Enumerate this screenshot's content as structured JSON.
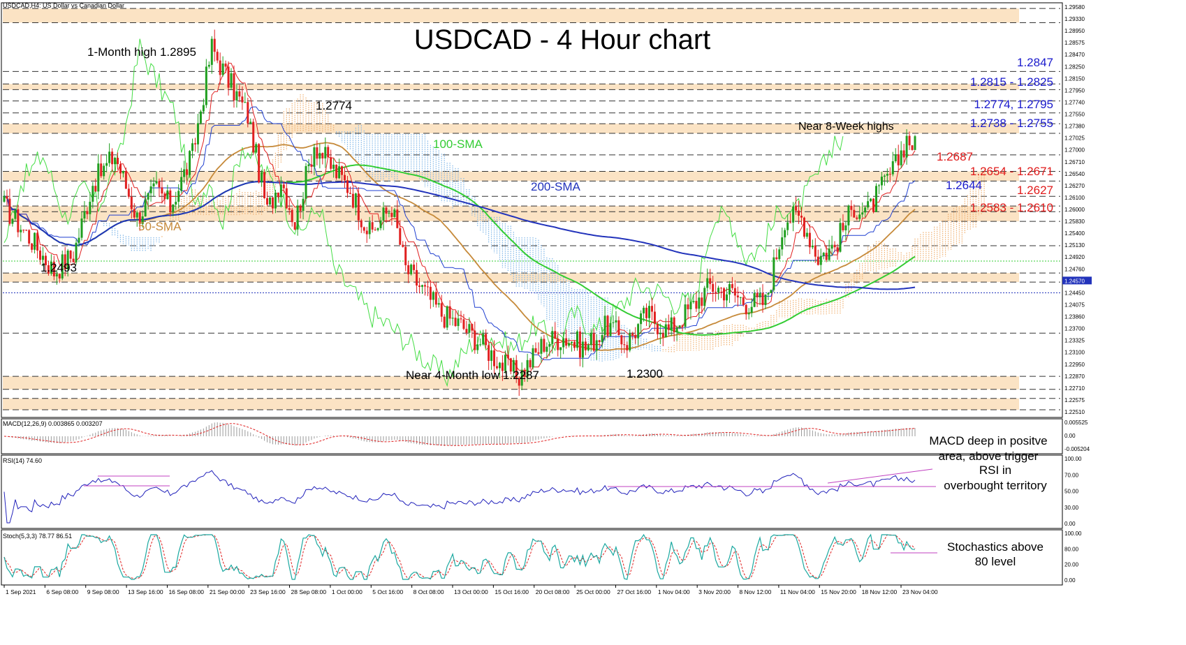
{
  "header": {
    "symbol_info": "USDCAD,H4:  US Dollar vs Canadian Dollar",
    "title": "USDCAD - 4 Hour chart"
  },
  "colors": {
    "zone": "#fbe3c4",
    "candle_up": "#1f9e1f",
    "candle_down": "#e02020",
    "sma50": "#c68a3a",
    "sma100": "#33cc33",
    "sma200": "#2233bb",
    "tenkan": "#e02020",
    "kijun": "#1f3fd0",
    "chikou": "#44dd44",
    "cloud_blue": "#7fb6e8",
    "cloud_orange": "#f0b070",
    "annot_blue": "#1a1acc",
    "annot_red": "#e01b1b",
    "macd_hist": "#9a9a9a",
    "macd_signal": "#e02020",
    "rsi_line": "#2222bb",
    "trend": "#c040c0",
    "stoch_main": "#1aa8a0",
    "stoch_signal": "#e02020"
  },
  "price_axis": {
    "min": 1.224,
    "max": 1.2968,
    "labels": [
      "1.29580",
      "1.29330",
      "1.28950",
      "1.28575",
      "1.28470",
      "1.28250",
      "1.28150",
      "1.27950",
      "1.27740",
      "1.27550",
      "1.27380",
      "1.27025",
      "1.27000",
      "1.26710",
      "1.26540",
      "1.26270",
      "1.26100",
      "1.26000",
      "1.25830",
      "1.25400",
      "1.25130",
      "1.24920",
      "1.24760",
      "1.24570",
      "1.24450",
      "1.24075",
      "1.23860",
      "1.23700",
      "1.23325",
      "1.23100",
      "1.22950",
      "1.22870",
      "1.22710",
      "1.22575",
      "1.22510"
    ],
    "highlight": "1.24570",
    "highlight_price": 1.2457
  },
  "levels": {
    "dashed": [
      1.2958,
      1.2933,
      1.2847,
      1.2825,
      1.2815,
      1.2795,
      1.2774,
      1.2755,
      1.2738,
      1.27,
      1.2671,
      1.2654,
      1.2627,
      1.261,
      1.26,
      1.2583,
      1.254,
      1.2492,
      1.2476,
      1.2386,
      1.231,
      1.2287,
      1.2271,
      1.2251
    ],
    "dotted_green": 1.2513,
    "dotted_blue": 1.2457
  },
  "zones": [
    [
      1.2933,
      1.2958
    ],
    [
      1.2815,
      1.2825
    ],
    [
      1.2738,
      1.2755
    ],
    [
      1.2654,
      1.2671
    ],
    [
      1.2583,
      1.261
    ],
    [
      1.2476,
      1.2492
    ],
    [
      1.2287,
      1.231
    ],
    [
      1.2251,
      1.2271
    ]
  ],
  "time_axis": [
    "1 Sep 2021",
    "6 Sep 08:00",
    "9 Sep 08:00",
    "13 Sep 16:00",
    "16 Sep 08:00",
    "21 Sep 00:00",
    "23 Sep 16:00",
    "28 Sep 08:00",
    "1 Oct 00:00",
    "5 Oct 16:00",
    "8 Oct 08:00",
    "13 Oct 00:00",
    "15 Oct 16:00",
    "20 Oct 08:00",
    "25 Oct 00:00",
    "27 Oct 16:00",
    "1 Nov 04:00",
    "3 Nov 20:00",
    "8 Nov 12:00",
    "11 Nov 04:00",
    "15 Nov 20:00",
    "18 Nov 12:00",
    "23 Nov 04:00"
  ],
  "annotations": {
    "month_high": "1-Month high 1.2895",
    "high_2774": "1.2774",
    "low_2493": "1.2493",
    "sma100": "100-SMA",
    "sma200": "200-SMA",
    "sma50": "50-SMA",
    "near_8w": "Near 8-Week highs",
    "near_4m_low": "Near 4-Month low 1.2287",
    "low_2300": "1.2300",
    "r1": "1.2847",
    "r2": "1.2815 - 1.2825",
    "r3": "1.2774, 1.2795",
    "r4": "1.2738 - 1.2755",
    "s1": "1.2687",
    "s2": "1.2654 - 1.2671",
    "s3": "1.2644",
    "s4": "1.2627",
    "s5": "1.2583 - 1.2610"
  },
  "macd": {
    "label": "MACD(12,26,9) 0.003865 0.003207",
    "axis": [
      "0.005525",
      "0.00",
      "-0.005204"
    ],
    "comment_1": "MACD deep in positve",
    "comment_2": "area, above trigger"
  },
  "rsi": {
    "label": "RSI(14) 74.60",
    "axis": [
      "100.00",
      "70.00",
      "50.00",
      "30.00",
      "0.00"
    ],
    "comment_1": "RSI in",
    "comment_2": "overbought territory"
  },
  "stoch": {
    "label": "Stoch(5,3,3) 78.77 86.51",
    "axis": [
      "100.00",
      "80.00",
      "20.00",
      "0.00"
    ],
    "comment_1": "Stochastics above",
    "comment_2": "80 level"
  },
  "chart_data": {
    "type": "line",
    "title": "USDCAD - 4 Hour chart",
    "subtitle": "USDCAD,H4:  US Dollar vs Canadian Dollar",
    "x": [
      "1 Sep 2021",
      "6 Sep 08:00",
      "9 Sep 08:00",
      "13 Sep 16:00",
      "16 Sep 08:00",
      "21 Sep 00:00",
      "23 Sep 16:00",
      "28 Sep 08:00",
      "1 Oct 00:00",
      "5 Oct 16:00",
      "8 Oct 08:00",
      "13 Oct 00:00",
      "15 Oct 16:00",
      "20 Oct 08:00",
      "25 Oct 00:00",
      "27 Oct 16:00",
      "1 Nov 04:00",
      "3 Nov 20:00",
      "8 Nov 12:00",
      "11 Nov 04:00",
      "15 Nov 20:00",
      "18 Nov 12:00",
      "23 Nov 04:00"
    ],
    "ylim": [
      1.224,
      1.2968
    ],
    "series": [
      {
        "name": "",
        "values": [
          1.257,
          1.252,
          1.2625,
          1.264,
          1.2645,
          1.283,
          1.27,
          1.276,
          1.266,
          1.26,
          1.247,
          1.242,
          1.236,
          1.2325,
          1.238,
          1.2355,
          1.239,
          1.246,
          1.244,
          1.259,
          1.2555,
          1.265,
          1.2735
        ]
      },
      {
        "name": "50-SMA",
        "values": [
          1.259,
          1.257,
          1.258,
          1.2605,
          1.2625,
          1.268,
          1.2715,
          1.271,
          1.269,
          1.264,
          1.256,
          1.248,
          1.242,
          1.239,
          1.237,
          1.2365,
          1.237,
          1.239,
          1.241,
          1.245,
          1.25,
          1.255,
          1.261
        ]
      },
      {
        "name": "100-SMA",
        "values": [
          1.262,
          1.2615,
          1.261,
          1.2615,
          1.262,
          1.264,
          1.2655,
          1.2665,
          1.267,
          1.266,
          1.261,
          1.256,
          1.251,
          1.246,
          1.243,
          1.241,
          1.239,
          1.2385,
          1.239,
          1.241,
          1.244,
          1.247,
          1.252
        ]
      },
      {
        "name": "200-SMA",
        "values": [
          1.2585,
          1.2585,
          1.259,
          1.26,
          1.261,
          1.2625,
          1.264,
          1.2655,
          1.2665,
          1.266,
          1.264,
          1.262,
          1.26,
          1.258,
          1.256,
          1.254,
          1.2515,
          1.2495,
          1.2475,
          1.2465,
          1.2455,
          1.2455,
          1.246
        ]
      }
    ],
    "support_resistance": [
      "1.2847",
      "1.2815 - 1.2825",
      "1.2774, 1.2795",
      "1.2738 - 1.2755",
      "1.2687",
      "1.2654 - 1.2671",
      "1.2644",
      "1.2627",
      "1.2583 - 1.2610"
    ],
    "grid": false,
    "legend": "none"
  }
}
